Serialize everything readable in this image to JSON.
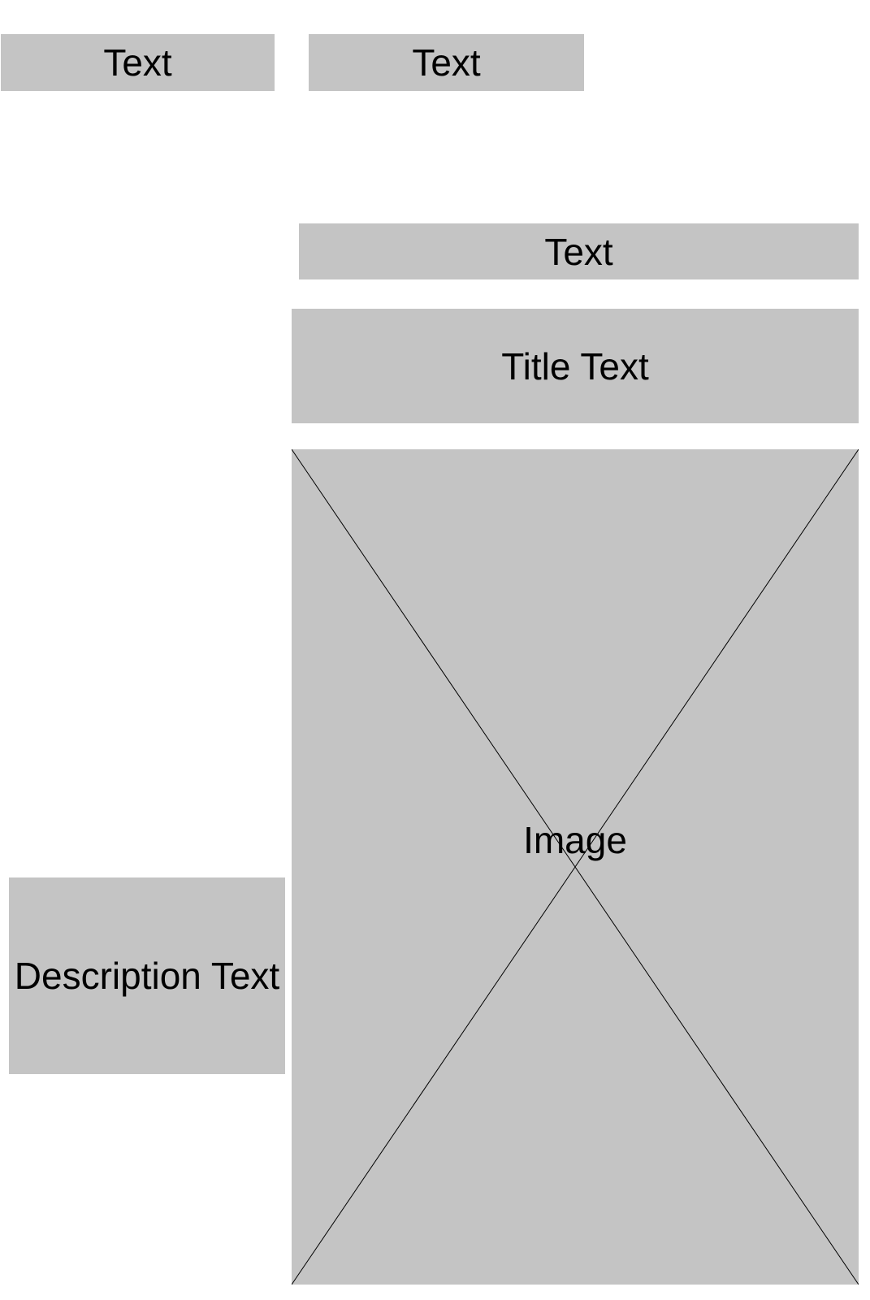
{
  "labels": {
    "text_1": "Text",
    "text_2": "Text",
    "text_3": "Text",
    "title": "Title Text",
    "image": "Image",
    "description": "Description Text"
  },
  "colors": {
    "placeholder_fill": "#c4c4c4",
    "text": "#000000",
    "background": "#ffffff"
  }
}
